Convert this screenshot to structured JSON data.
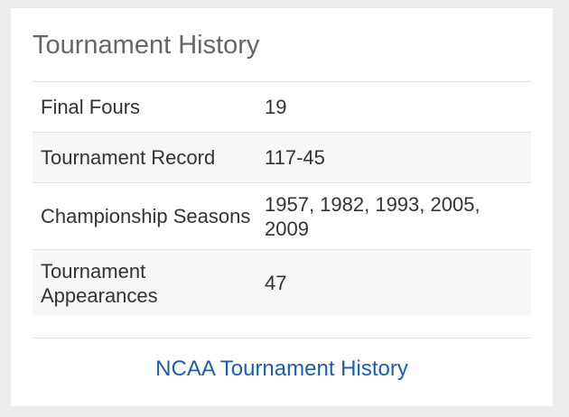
{
  "card": {
    "title": "Tournament History",
    "rows": [
      {
        "label": "Final Fours",
        "value": "19"
      },
      {
        "label": "Tournament Record",
        "value": "117-45"
      },
      {
        "label": "Championship Seasons",
        "value": "1957, 1982, 1993, 2005, 2009"
      },
      {
        "label": "Tournament Appearances",
        "value": "47"
      }
    ],
    "link_label": "NCAA Tournament History"
  },
  "colors": {
    "page_background": "#ececec",
    "card_background": "#ffffff",
    "title_text": "#666666",
    "body_text": "#333333",
    "row_shade": "#f7f7f7",
    "link": "#1a5fb4"
  }
}
